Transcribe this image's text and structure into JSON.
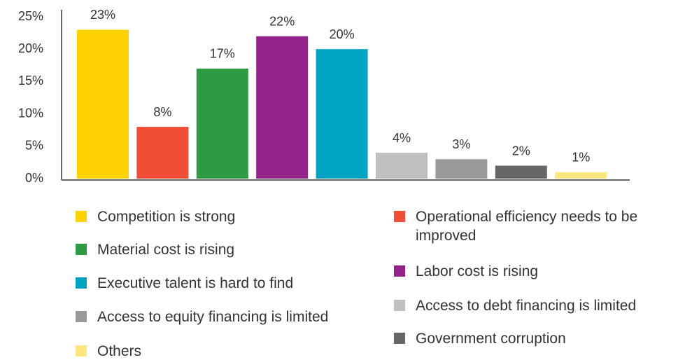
{
  "chart_data": {
    "type": "bar",
    "categories": [
      "Competition is strong",
      "Operational efficiency needs to be improved",
      "Material cost is rising",
      "Labor cost is rising",
      "Executive talent is hard to find",
      "Access to debt financing is limited",
      "Access to equity financing is limited",
      "Government corruption",
      "Others"
    ],
    "values": [
      23,
      8,
      17,
      22,
      20,
      4,
      3,
      2,
      1
    ],
    "value_labels": [
      "23%",
      "8%",
      "17%",
      "22%",
      "20%",
      "4%",
      "3%",
      "2%",
      "1%"
    ],
    "colors": [
      "#ffd200",
      "#f04e37",
      "#2d9b41",
      "#912389",
      "#00a3c0",
      "#c0c0c0",
      "#999999",
      "#666666",
      "#ffe680"
    ],
    "ylim": [
      0,
      25
    ],
    "yticks": [
      {
        "value": 0,
        "label": "0%"
      },
      {
        "value": 5,
        "label": "5%"
      },
      {
        "value": 10,
        "label": "10%"
      },
      {
        "value": 15,
        "label": "15%"
      },
      {
        "value": 20,
        "label": "20%"
      },
      {
        "value": 25,
        "label": "25%"
      }
    ],
    "grid": false,
    "legend": "bottom"
  }
}
